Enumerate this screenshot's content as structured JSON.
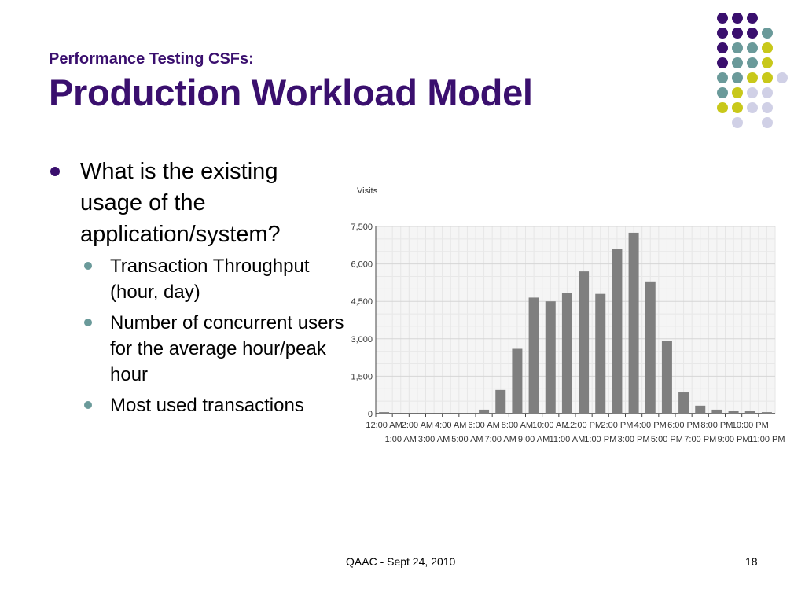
{
  "slide": {
    "subtitle": "Performance Testing CSFs:",
    "title": "Production Workload Model",
    "footer": "QAAC - Sept 24, 2010",
    "page_number": "18"
  },
  "bullets": {
    "main": "What is the existing usage of the application/system?",
    "sub": [
      "Transaction Throughput (hour, day)",
      "Number of concurrent users for the average hour/peak hour",
      "Most used transactions"
    ]
  },
  "colors": {
    "title": "#3a0f6e",
    "dot_purple": "#3a0f6e",
    "dot_teal": "#6a9a9a",
    "dot_lime": "#c8c81a",
    "dot_lavender": "#d0d0e6",
    "bar": "#7f7f7f"
  },
  "chart_data": {
    "type": "bar",
    "ylabel": "Visits",
    "xlabel": "",
    "ylim": [
      0,
      7500
    ],
    "yticks": [
      "0",
      "1,500",
      "3,000",
      "4,500",
      "6,000",
      "7,500"
    ],
    "grid": true,
    "categories": [
      "12:00 AM",
      "1:00 AM",
      "2:00 AM",
      "3:00 AM",
      "4:00 AM",
      "5:00 AM",
      "6:00 AM",
      "7:00 AM",
      "8:00 AM",
      "9:00 AM",
      "10:00 AM",
      "11:00 AM",
      "12:00 PM",
      "1:00 PM",
      "2:00 PM",
      "3:00 PM",
      "4:00 PM",
      "5:00 PM",
      "6:00 PM",
      "7:00 PM",
      "8:00 PM",
      "9:00 PM",
      "10:00 PM",
      "11:00 PM"
    ],
    "values": [
      60,
      0,
      0,
      0,
      0,
      0,
      160,
      950,
      2600,
      4650,
      4500,
      4850,
      5700,
      4800,
      6600,
      7250,
      5300,
      2900,
      850,
      320,
      160,
      100,
      100,
      60
    ]
  }
}
